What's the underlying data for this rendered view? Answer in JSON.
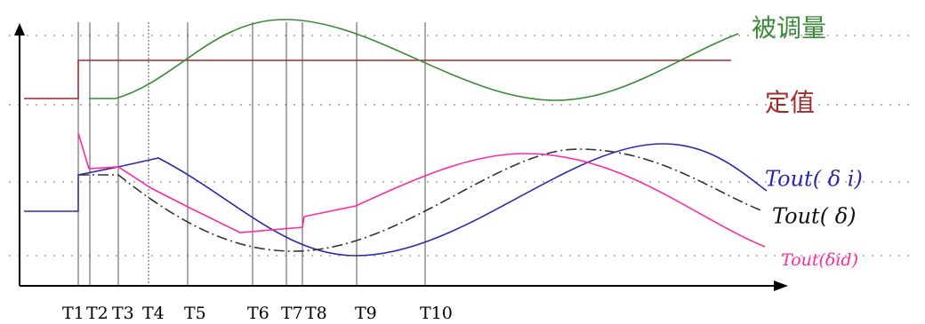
{
  "curve_labels": {
    "controlled_variable": "被调量",
    "setpoint": "定值",
    "out_delta_i": "Tout( δ i)",
    "out_delta": "Tout( δ)",
    "out_delta_id": "Tout(δid)"
  },
  "time_labels": [
    "T1",
    "T2",
    "T3",
    "T4",
    "T5",
    "T6",
    "T7",
    "T8",
    "T9",
    "T10"
  ]
}
